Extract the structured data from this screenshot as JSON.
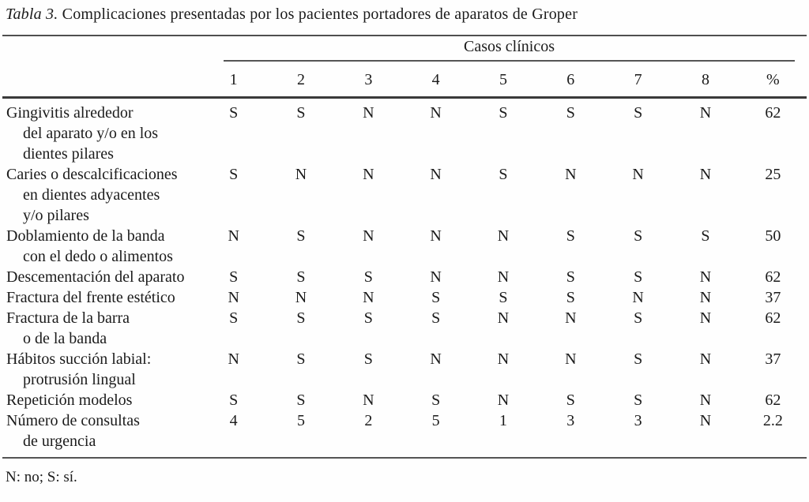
{
  "title": {
    "italic_part": "Tabla 3.",
    "text_part": "Complicaciones presentadas por los pacientes portadores de aparatos de Groper"
  },
  "table": {
    "group_header": "Casos clínicos",
    "columns": [
      "1",
      "2",
      "3",
      "4",
      "5",
      "6",
      "7",
      "8",
      "%"
    ],
    "rows": [
      {
        "label": "Gingivitis alrededor\ndel aparato y/o en los\ndientes pilares",
        "values": [
          "S",
          "S",
          "N",
          "N",
          "S",
          "S",
          "S",
          "N",
          "62"
        ]
      },
      {
        "label": "Caries o descalcificaciones\nen dientes adyacentes\ny/o pilares",
        "values": [
          "S",
          "N",
          "N",
          "N",
          "S",
          "N",
          "N",
          "N",
          "25"
        ]
      },
      {
        "label": "Doblamiento de la banda\ncon el dedo o alimentos",
        "values": [
          "N",
          "S",
          "N",
          "N",
          "N",
          "S",
          "S",
          "S",
          "50"
        ]
      },
      {
        "label": "Descementación del aparato",
        "values": [
          "S",
          "S",
          "S",
          "N",
          "N",
          "S",
          "S",
          "N",
          "62"
        ]
      },
      {
        "label": "Fractura del frente estético",
        "values": [
          "N",
          "N",
          "N",
          "S",
          "S",
          "S",
          "N",
          "N",
          "37"
        ]
      },
      {
        "label": "Fractura de la barra\no de la banda",
        "values": [
          "S",
          "S",
          "S",
          "S",
          "N",
          "N",
          "S",
          "N",
          "62"
        ]
      },
      {
        "label": "Hábitos succión labial:\nprotrusión lingual",
        "values": [
          "N",
          "S",
          "S",
          "N",
          "N",
          "N",
          "S",
          "N",
          "37"
        ]
      },
      {
        "label": "Repetición modelos",
        "values": [
          "S",
          "S",
          "N",
          "S",
          "N",
          "S",
          "S",
          "N",
          "62"
        ]
      },
      {
        "label": "Número de consultas\nde urgencia",
        "values": [
          "4",
          "5",
          "2",
          "5",
          "1",
          "3",
          "3",
          "N",
          "2.2"
        ]
      }
    ]
  },
  "footnote": "N: no; S: sí."
}
